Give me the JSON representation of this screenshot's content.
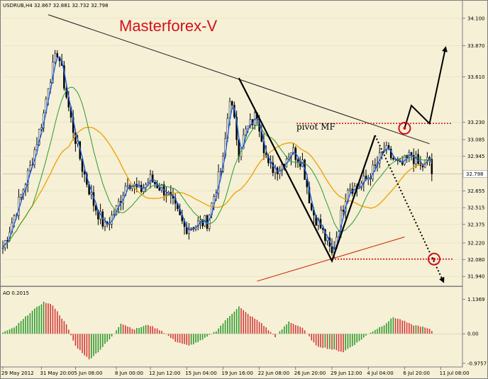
{
  "header": {
    "symbol_info": "USDRUB,H4 32.867 32.881 32.732 32.798",
    "brand": "Masterforex-V",
    "pivot_label": "pivot MF"
  },
  "price_panel": {
    "ylim": [
      31.87,
      34.17
    ],
    "y_ticks": [
      "34.100",
      "33.870",
      "33.610",
      "33.230",
      "33.085",
      "32.945",
      "32.798",
      "32.655",
      "32.515",
      "32.375",
      "32.220",
      "32.080",
      "31.940"
    ],
    "y_tick_values": [
      34.1,
      33.87,
      33.61,
      33.23,
      33.085,
      32.945,
      32.798,
      32.655,
      32.515,
      32.375,
      32.22,
      32.08,
      31.94
    ],
    "current_price": "32.798",
    "pivot_level": 33.22,
    "support_level": 32.085,
    "colors": {
      "ma_fast": "#1a5fe0",
      "ma_mid": "#2f9a2f",
      "ma_slow": "#f0a000",
      "ma_long": "#cc2200",
      "candles": "#000000",
      "markup": "#d4101c"
    }
  },
  "ao_panel": {
    "label": "AO 0.2015",
    "ylim": [
      -1.05,
      1.2
    ],
    "y_ticks": [
      "1.1369",
      "0.00",
      "-0.9757"
    ],
    "y_tick_values": [
      1.1369,
      0.0,
      -0.9757
    ],
    "colors": {
      "up": "#2e9a2e",
      "down": "#d43a3a"
    }
  },
  "chart_data": {
    "type": "candlestick",
    "title": "USDRUB,H4",
    "x_labels": [
      "29 May 2012",
      "31 May 20:00",
      "5 Jun 08:00",
      "8 Jun 00:00",
      "12 Jun 12:00",
      "15 Jun 04:00",
      "19 Jun 16:00",
      "22 Jun 08:00",
      "26 Jun 20:00",
      "29 Jun 12:00",
      "4 Jul 04:00",
      "6 Jul 20:00",
      "11 Jul 08:00"
    ],
    "x_label_index": [
      0,
      17,
      32,
      50,
      65,
      81,
      97,
      113,
      129,
      145,
      161,
      177,
      193
    ],
    "bar_count": 190,
    "price_path_bars": [
      0,
      6,
      12,
      18,
      20,
      22,
      24,
      25,
      27,
      30,
      35,
      40,
      45,
      50,
      55,
      60,
      65,
      72,
      80,
      90,
      97,
      100,
      104,
      107,
      112,
      117,
      122,
      127,
      132,
      136,
      140,
      145,
      149,
      152,
      156,
      160,
      164,
      168,
      172,
      175,
      180,
      184,
      188,
      189
    ],
    "price_path_values": [
      32.18,
      32.5,
      32.85,
      33.3,
      33.55,
      33.68,
      33.82,
      33.75,
      33.55,
      33.25,
      32.85,
      32.55,
      32.35,
      32.5,
      32.75,
      32.65,
      32.75,
      32.65,
      32.35,
      32.4,
      32.9,
      33.45,
      33.0,
      33.15,
      33.3,
      32.85,
      32.85,
      33.0,
      32.9,
      32.5,
      32.35,
      32.12,
      32.45,
      32.7,
      32.68,
      32.75,
      32.85,
      33.0,
      32.92,
      32.85,
      32.96,
      32.85,
      32.92,
      32.8
    ],
    "ao_path_bars": [
      0,
      5,
      12,
      18,
      22,
      28,
      32,
      38,
      42,
      48,
      52,
      58,
      64,
      70,
      76,
      82,
      88,
      94,
      100,
      104,
      108,
      114,
      120,
      126,
      132,
      138,
      144,
      150,
      156,
      162,
      168,
      172,
      176,
      180,
      184,
      188,
      189
    ],
    "ao_path_values": [
      0.05,
      0.2,
      0.7,
      1.05,
      0.95,
      0.3,
      -0.4,
      -0.85,
      -0.6,
      -0.1,
      0.35,
      0.15,
      0.3,
      0.1,
      -0.25,
      -0.4,
      -0.2,
      0.1,
      0.6,
      0.9,
      0.65,
      0.35,
      -0.1,
      0.4,
      0.2,
      -0.4,
      -0.5,
      -0.6,
      -0.3,
      0.05,
      0.3,
      0.55,
      0.45,
      0.3,
      0.25,
      0.15,
      0.1
    ],
    "trendline": {
      "from": {
        "bar": 20,
        "price": 34.13
      },
      "to": {
        "bar": 188,
        "price": 33.05
      }
    },
    "pattern_path": [
      {
        "bar": 104,
        "price": 33.6
      },
      {
        "bar": 145,
        "price": 32.07
      },
      {
        "bar": 164,
        "price": 33.12
      }
    ],
    "forecast_up": [
      {
        "bar": 177,
        "price": 33.18
      },
      {
        "bar": 180,
        "price": 33.37
      },
      {
        "bar": 188,
        "price": 33.22
      },
      {
        "bar": 195,
        "price": 33.85
      }
    ],
    "forecast_down": [
      {
        "bar": 164,
        "price": 33.12
      },
      {
        "bar": 194,
        "price": 31.9
      }
    ],
    "circles": [
      {
        "bar": 177,
        "price": 33.18
      },
      {
        "bar": 190,
        "price": 32.085
      }
    ],
    "long_ma_segment": {
      "from": {
        "bar": 112,
        "price": 31.9
      },
      "to": {
        "bar": 177,
        "price": 32.27
      }
    }
  }
}
